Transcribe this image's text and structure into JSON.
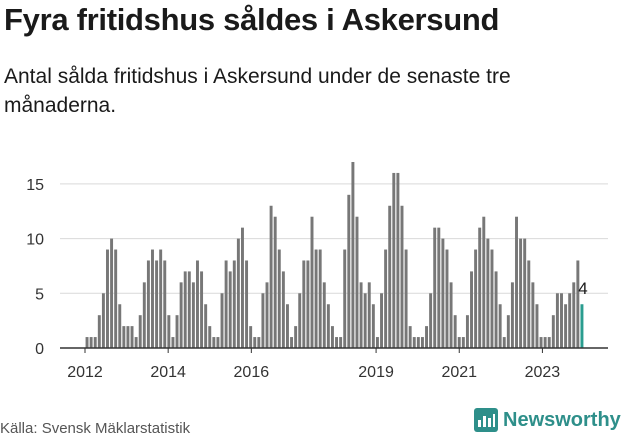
{
  "header": {
    "title": "Fyra fritidshus såldes i Askersund",
    "subtitle": "Antal sålda fritidshus i Askersund under de senaste tre månaderna."
  },
  "footer": {
    "source": "Källa: Svensk Mäklarstatistik",
    "brand": "Newsworthy"
  },
  "colors": {
    "bar": "#777777",
    "highlight": "#2a9d8f",
    "grid": "#d9d9d9",
    "axis": "#333333",
    "brand": "#2e8f8a"
  },
  "chart_data": {
    "type": "bar",
    "title": "",
    "xlabel": "",
    "ylabel": "",
    "ylim": [
      0,
      17
    ],
    "yticks": [
      0,
      5,
      10,
      15
    ],
    "xtick_labels": [
      "2012",
      "2014",
      "2016",
      "2019",
      "2021",
      "2023"
    ],
    "x_start": "2012-01",
    "x_end": "2023-12",
    "grid": true,
    "legend": "none",
    "values": [
      1,
      1,
      1,
      3,
      5,
      9,
      10,
      9,
      4,
      2,
      2,
      2,
      1,
      3,
      6,
      8,
      9,
      8,
      9,
      8,
      3,
      1,
      3,
      6,
      7,
      7,
      6,
      8,
      7,
      4,
      2,
      1,
      1,
      5,
      8,
      7,
      8,
      10,
      11,
      8,
      2,
      1,
      1,
      5,
      6,
      13,
      12,
      9,
      7,
      4,
      1,
      2,
      5,
      8,
      8,
      12,
      9,
      9,
      6,
      4,
      2,
      1,
      1,
      9,
      14,
      17,
      12,
      6,
      5,
      6,
      4,
      1,
      5,
      9,
      13,
      16,
      16,
      13,
      9,
      2,
      1,
      1,
      1,
      2,
      5,
      11,
      11,
      10,
      9,
      6,
      3,
      1,
      1,
      3,
      7,
      9,
      11,
      12,
      10,
      9,
      7,
      4,
      1,
      3,
      6,
      12,
      10,
      10,
      8,
      6,
      4,
      1,
      1,
      1,
      3,
      5,
      5,
      4,
      5,
      6,
      8,
      4
    ],
    "highlight_last": true,
    "annotation": "4"
  }
}
